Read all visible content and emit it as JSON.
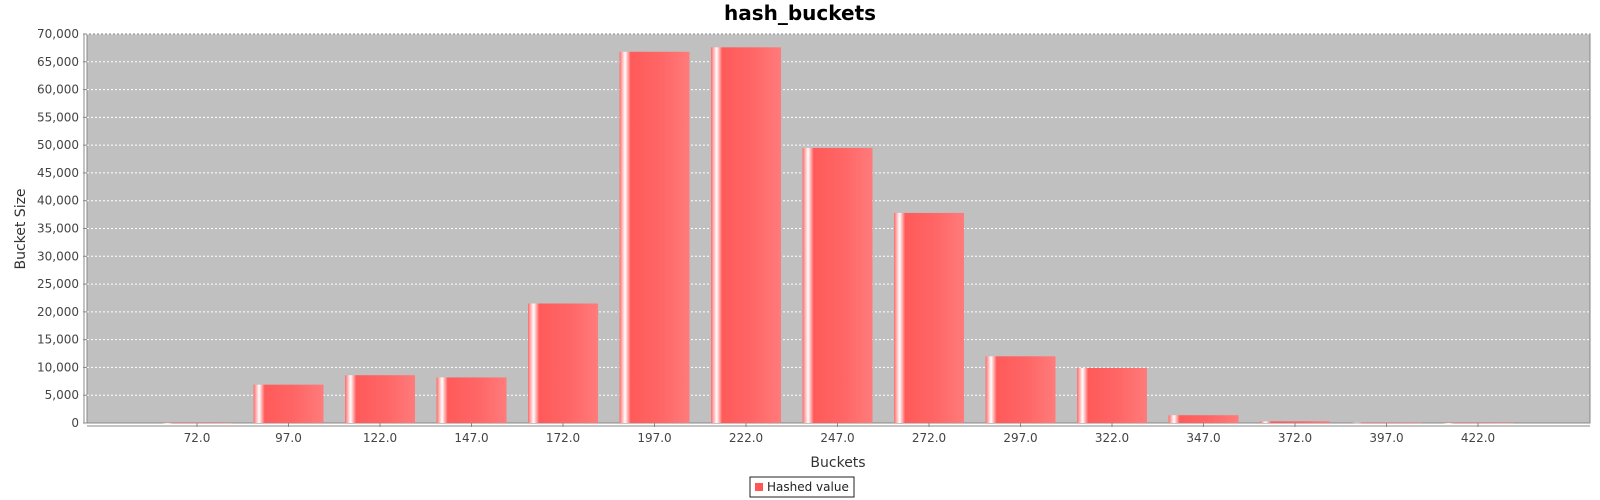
{
  "chart_data": {
    "type": "bar",
    "title": "hash_buckets",
    "xlabel": "Buckets",
    "ylabel": "Bucket Size",
    "categories": [
      "72.0",
      "97.0",
      "122.0",
      "147.0",
      "172.0",
      "197.0",
      "222.0",
      "247.0",
      "272.0",
      "297.0",
      "322.0",
      "347.0",
      "372.0",
      "397.0",
      "422.0"
    ],
    "series": [
      {
        "name": "Hashed value",
        "color": "#ff5555",
        "values": [
          10,
          6900,
          8600,
          8200,
          21500,
          66800,
          67600,
          49500,
          37800,
          12000,
          9900,
          1400,
          300,
          60,
          5
        ]
      }
    ],
    "ylim": [
      0,
      70000
    ],
    "yticks": [
      0,
      5000,
      10000,
      15000,
      20000,
      25000,
      30000,
      35000,
      40000,
      45000,
      50000,
      55000,
      60000,
      65000,
      70000
    ],
    "ytick_labels": [
      "0",
      "5,000",
      "10,000",
      "15,000",
      "20,000",
      "25,000",
      "30,000",
      "35,000",
      "40,000",
      "45,000",
      "50,000",
      "55,000",
      "60,000",
      "65,000",
      "70,000"
    ],
    "grid": true,
    "legend": "bottom-center",
    "plot_background": "#c0c0c0"
  }
}
